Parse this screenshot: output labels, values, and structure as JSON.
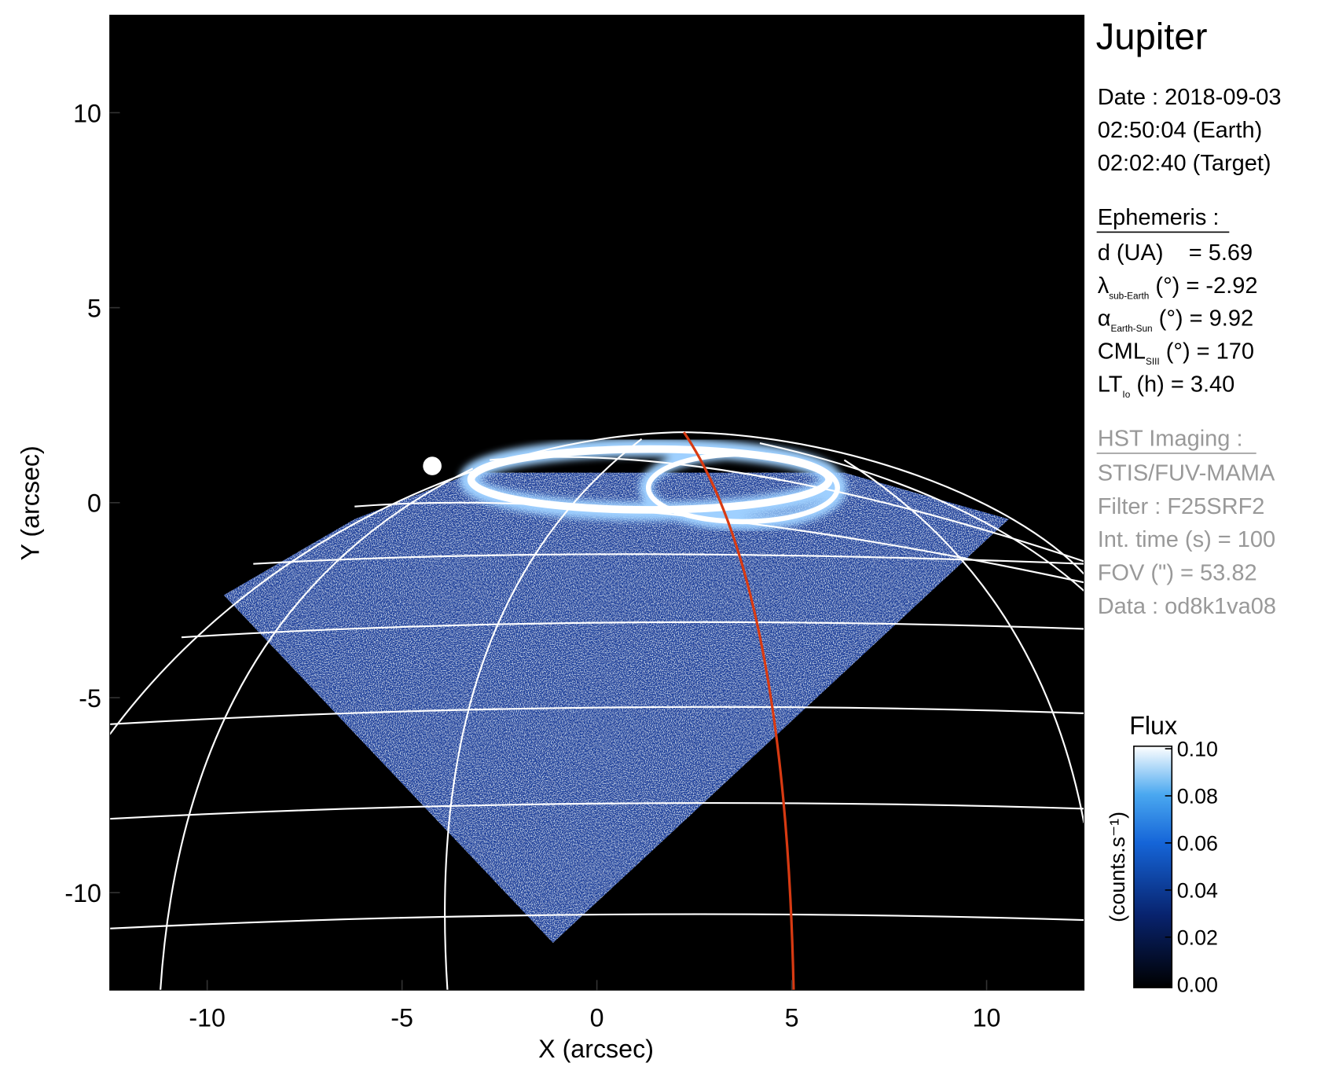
{
  "chart_data": {
    "type": "image",
    "title": "Jupiter",
    "xlabel": "X (arcsec)",
    "ylabel": "Y (arcsec)",
    "xlim": [
      -12.5,
      12.5
    ],
    "ylim": [
      -12.5,
      12.5
    ],
    "xticks": [
      -10,
      -5,
      0,
      5,
      10
    ],
    "yticks": [
      -10,
      -5,
      0,
      5,
      10
    ],
    "colorbar": {
      "label": "Flux",
      "units": "(counts.s⁻¹)",
      "lim": [
        0,
        0.1
      ],
      "ticks": [
        {
          "value": 0,
          "label": "0.00"
        },
        {
          "value": 0.02,
          "label": "0.02"
        },
        {
          "value": 0.04,
          "label": "0.04"
        },
        {
          "value": 0.06,
          "label": "0.06"
        },
        {
          "value": 0.08,
          "label": "0.08"
        },
        {
          "value": 0.1,
          "label": "0.10"
        }
      ]
    }
  },
  "info": {
    "date": [
      "Date : 2018-09-03",
      "02:50:04 (Earth)",
      "02:02:40 (Target)"
    ],
    "ephemeris": {
      "heading": "Ephemeris :",
      "lines": [
        {
          "main": "d (UA)    = 5.69"
        },
        {
          "main": "λ",
          "sub": "sub-Earth",
          "rest": " (°) = -2.92"
        },
        {
          "main": "α",
          "sub": "Earth-Sun",
          "rest": " (°) = 9.92"
        },
        {
          "main": "CML",
          "sub": "SIII",
          "rest": " (°) = 170"
        },
        {
          "main": "LT",
          "sub": "Io",
          "rest": " (h) = 3.40"
        }
      ]
    },
    "imaging": {
      "heading": "HST Imaging :",
      "lines": [
        "STIS/FUV-MAMA",
        "Filter : F25SRF2",
        "Int. time (s) = 100",
        "FOV (\") = 53.82",
        "Data : od8k1va08"
      ]
    }
  }
}
